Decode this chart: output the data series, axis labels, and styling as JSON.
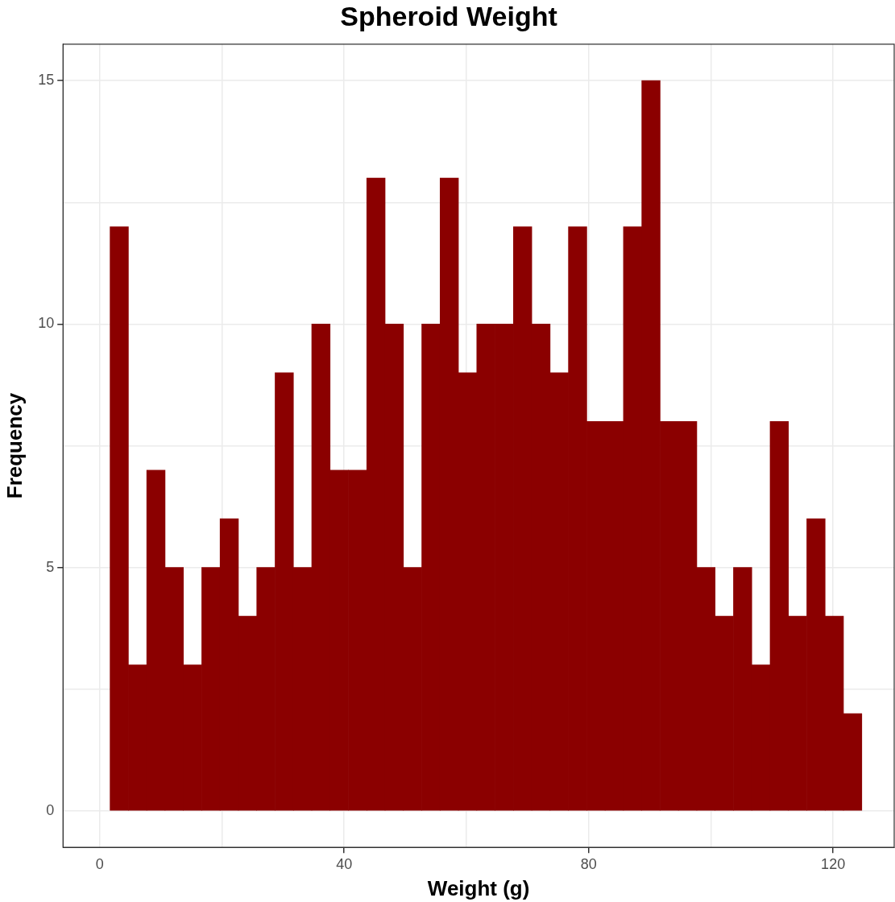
{
  "chart_data": {
    "type": "histogram",
    "title": "Spheroid Weight",
    "xlabel": "Weight (g)",
    "ylabel": "Frequency",
    "color": "#8b0000",
    "bins": [
      1.7,
      4.7,
      7.7,
      10.7,
      13.7,
      16.7,
      19.7,
      22.7,
      25.7,
      28.7,
      31.7,
      34.7,
      37.7,
      40.7,
      43.7,
      46.7,
      49.7,
      52.7,
      55.7,
      58.7,
      61.7,
      64.7,
      67.7,
      70.7,
      73.7,
      76.7,
      79.7,
      82.7,
      85.7,
      88.7,
      91.7,
      94.7,
      97.7,
      100.7,
      103.7,
      106.7,
      109.7,
      112.7,
      115.7,
      118.7,
      121.7,
      124.7
    ],
    "values": [
      12,
      3,
      7,
      5,
      3,
      5,
      6,
      4,
      5,
      9,
      5,
      10,
      7,
      7,
      13,
      10,
      5,
      10,
      13,
      9,
      10,
      10,
      12,
      10,
      9,
      12,
      8,
      8,
      12,
      15,
      8,
      8,
      5,
      4,
      5,
      3,
      8,
      4,
      6,
      4,
      2
    ],
    "xlim": [
      -6,
      130
    ],
    "xticks": [
      0,
      {
        "value": 20,
        "label": null
      },
      40,
      {
        "value": 60,
        "label": null
      },
      80,
      {
        "value": 100,
        "label": null
      },
      120
    ],
    "ylim": [
      -0.75,
      15.75
    ],
    "yticks": [
      0,
      {
        "value": 2.5,
        "label": null
      },
      5,
      {
        "value": 7.5,
        "label": null
      },
      10,
      {
        "value": 12.5,
        "label": null
      },
      15
    ],
    "grid": true,
    "legend": false
  }
}
